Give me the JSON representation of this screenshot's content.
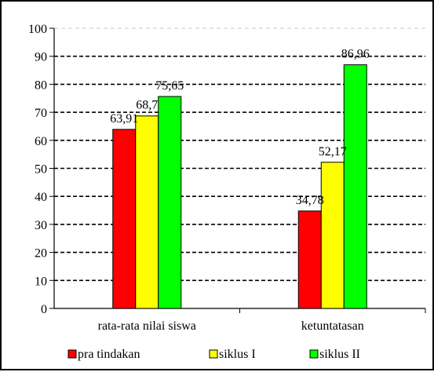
{
  "chart_data": {
    "type": "bar",
    "categories": [
      "rata-rata nilai siswa",
      "ketuntatasan"
    ],
    "series": [
      {
        "name": "pra tindakan",
        "values": [
          63.91,
          34.78
        ],
        "labels": [
          "63,91",
          "34,78"
        ],
        "color": "#ff0000"
      },
      {
        "name": "siklus I",
        "values": [
          68.7,
          52.17
        ],
        "labels": [
          "68,7",
          "52,17"
        ],
        "color": "#ffff00"
      },
      {
        "name": "siklus II",
        "values": [
          75.65,
          86.96
        ],
        "labels": [
          "75,65",
          "86,96"
        ],
        "color": "#00ff00"
      }
    ],
    "ylim": [
      0,
      100
    ],
    "yticks": [
      "0",
      "10",
      "20",
      "30",
      "40",
      "50",
      "60",
      "70",
      "80",
      "90",
      "100"
    ],
    "grid": true,
    "legend_position": "bottom",
    "title": "",
    "xlabel": "",
    "ylabel": ""
  }
}
